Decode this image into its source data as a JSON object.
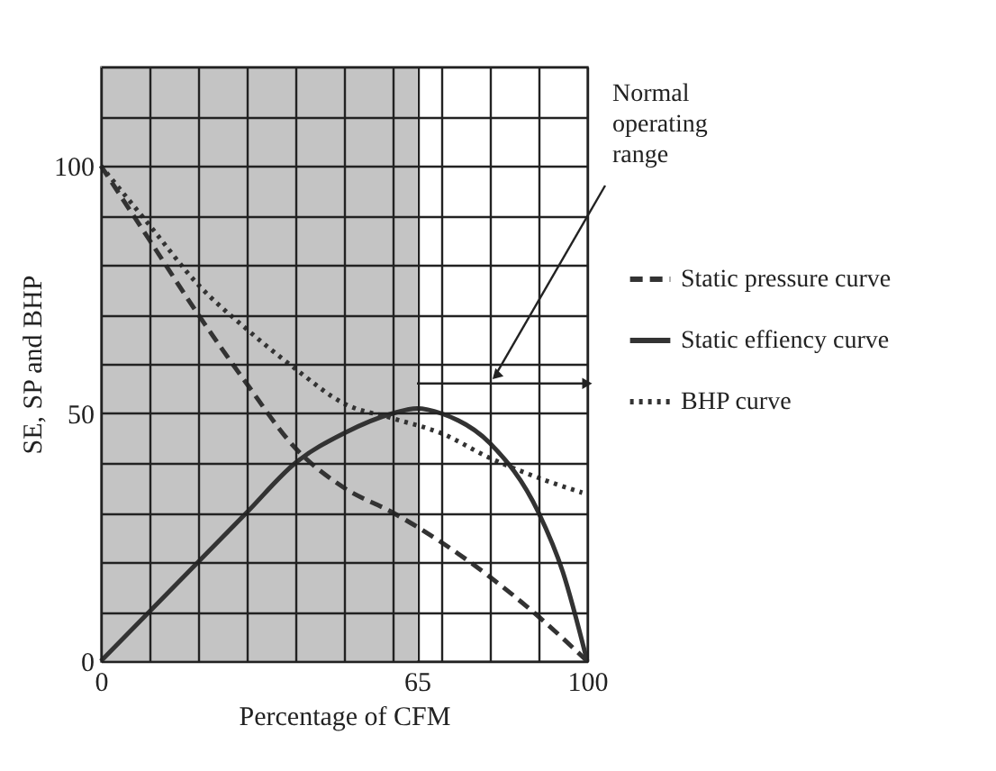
{
  "chart_data": {
    "type": "line",
    "xlabel": "Percentage of CFM",
    "ylabel": "SE, SP and BHP",
    "xlim": [
      0,
      100
    ],
    "ylim": [
      0,
      120
    ],
    "xticks": [
      0,
      {
        "value": 10,
        "label": null
      },
      {
        "value": 20,
        "label": null
      },
      {
        "value": 30,
        "label": null
      },
      {
        "value": 40,
        "label": null
      },
      {
        "value": 50,
        "label": null
      },
      {
        "value": 60,
        "label": null
      },
      65,
      {
        "value": 70,
        "label": null
      },
      {
        "value": 80,
        "label": null
      },
      {
        "value": 90,
        "label": null
      },
      100
    ],
    "yticks": [
      0,
      {
        "value": 10,
        "label": null
      },
      {
        "value": 20,
        "label": null
      },
      {
        "value": 30,
        "label": null
      },
      {
        "value": 40,
        "label": null
      },
      50,
      {
        "value": 60,
        "label": null
      },
      {
        "value": 70,
        "label": null
      },
      {
        "value": 80,
        "label": null
      },
      {
        "value": 90,
        "label": null
      },
      100,
      {
        "value": 110,
        "label": null
      },
      {
        "value": 120,
        "label": null
      }
    ],
    "grid": true,
    "legend": "right",
    "bands": [
      {
        "axis": "x",
        "from": 0,
        "to": 65,
        "color": "#b5b5b5"
      }
    ],
    "annotations": [
      "Normal operating range"
    ],
    "series": [
      {
        "name": "Static pressure curve",
        "color": "#333333",
        "line_style": "dashed",
        "x": [
          0,
          10,
          20,
          30,
          40,
          50,
          60,
          70,
          80,
          90,
          100
        ],
        "values": [
          100,
          85,
          70,
          56,
          43,
          35,
          30,
          24,
          17,
          9,
          0
        ]
      },
      {
        "name": "Static effiency curve",
        "color": "#333333",
        "line_style": "solid",
        "x": [
          0,
          10,
          20,
          30,
          40,
          50,
          60,
          65,
          70,
          80,
          90,
          95,
          100
        ],
        "values": [
          0,
          10,
          20,
          30,
          40,
          46,
          50,
          51,
          50,
          44,
          30,
          18,
          0
        ]
      },
      {
        "name": "BHP curve",
        "color": "#333333",
        "line_style": "dotted",
        "x": [
          0,
          10,
          20,
          30,
          40,
          50,
          60,
          70,
          80,
          90,
          99
        ],
        "values": [
          100,
          88,
          76,
          67,
          59,
          52,
          49,
          46,
          41,
          37,
          34
        ]
      }
    ]
  }
}
